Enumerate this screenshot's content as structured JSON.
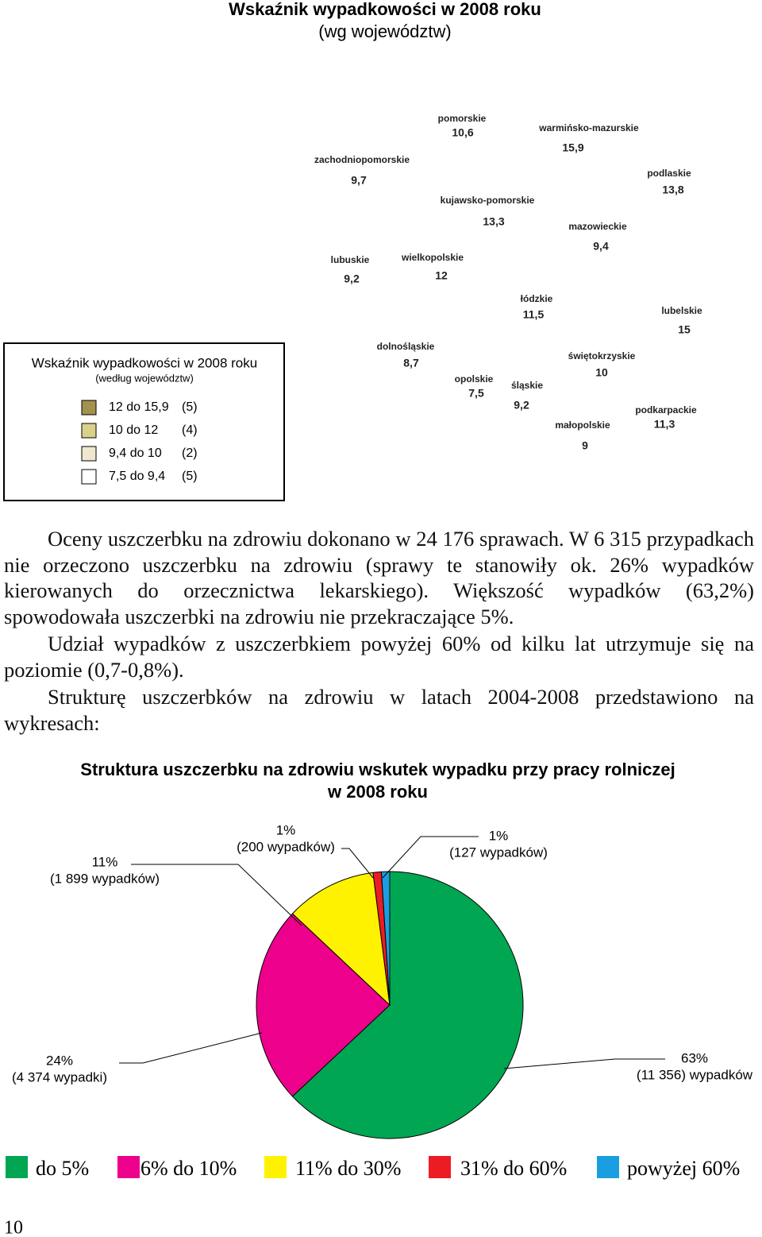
{
  "map": {
    "title": "Wskaźnik wypadkowości w 2008 roku",
    "subtitle": "(wg województw)",
    "legend": {
      "title": "Wskaźnik wypadkowości w 2008 roku",
      "subtitle": "(według województw)",
      "items": [
        {
          "label": "12 do 15,9",
          "count": "(5)",
          "color": "#a39150"
        },
        {
          "label": "10 do 12",
          "count": "(4)",
          "color": "#d9d08c"
        },
        {
          "label": "9,4 do 10",
          "count": "(2)",
          "color": "#eee8d0"
        },
        {
          "label": "7,5 do 9,4",
          "count": "(5)",
          "color": "#ffffff"
        }
      ]
    },
    "regions": [
      {
        "name": "zachodniopomorskie",
        "value": "9,7"
      },
      {
        "name": "pomorskie",
        "value": "10,6"
      },
      {
        "name": "warmińsko-mazurskie",
        "value": "15,9"
      },
      {
        "name": "podlaskie",
        "value": "13,8"
      },
      {
        "name": "kujawsko-pomorskie",
        "value": "13,3"
      },
      {
        "name": "mazowieckie",
        "value": "9,4"
      },
      {
        "name": "lubuskie",
        "value": "9,2"
      },
      {
        "name": "wielkopolskie",
        "value": "12"
      },
      {
        "name": "łódzkie",
        "value": "11,5"
      },
      {
        "name": "lubelskie",
        "value": "15"
      },
      {
        "name": "dolnośląskie",
        "value": "8,7"
      },
      {
        "name": "świętokrzyskie",
        "value": "10"
      },
      {
        "name": "opolskie",
        "value": "7,5"
      },
      {
        "name": "śląskie",
        "value": "9,2"
      },
      {
        "name": "podkarpackie",
        "value": "11,3"
      },
      {
        "name": "małopolskie",
        "value": "9"
      }
    ]
  },
  "paragraphs": [
    "Oceny uszczerbku na zdrowiu dokonano w 24 176 sprawach. W 6 315 przypadkach nie orzeczono uszczerbku na zdrowiu (sprawy te stanowiły ok. 26% wypadków kierowanych do orzecznictwa lekarskiego). Większość wypadków (63,2%) spowodowała uszczerbki na zdrowiu nie przekraczające 5%.",
    "Udział wypadków z uszczerbkiem powyżej 60% od kilku lat utrzymuje się na poziomie (0,7-0,8%).",
    "Strukturę uszczerbków na zdrowiu w latach 2004-2008 przedstawiono na wykresach:"
  ],
  "chart_data": {
    "type": "pie",
    "title": "Struktura uszczerbku na zdrowiu wskutek wypadku przy pracy rolniczej",
    "subtitle": "w  2008 roku",
    "categories": [
      "do 5%",
      "6% do 10%",
      "11% do 30%",
      "31% do 60%",
      "powyżej 60%"
    ],
    "values": [
      63,
      24,
      11,
      1,
      1
    ],
    "value_labels": [
      "63%",
      "24%",
      "11%",
      "1%",
      "1%"
    ],
    "counts": [
      "(11 356) wypadków",
      "(4 374 wypadki)",
      "(1 899 wypadków)",
      "(200 wypadków)",
      "(127 wypadków)"
    ],
    "colors": [
      "#00a651",
      "#ec008c",
      "#fff200",
      "#ed1c24",
      "#1b9ee0"
    ]
  },
  "page_number": "10"
}
